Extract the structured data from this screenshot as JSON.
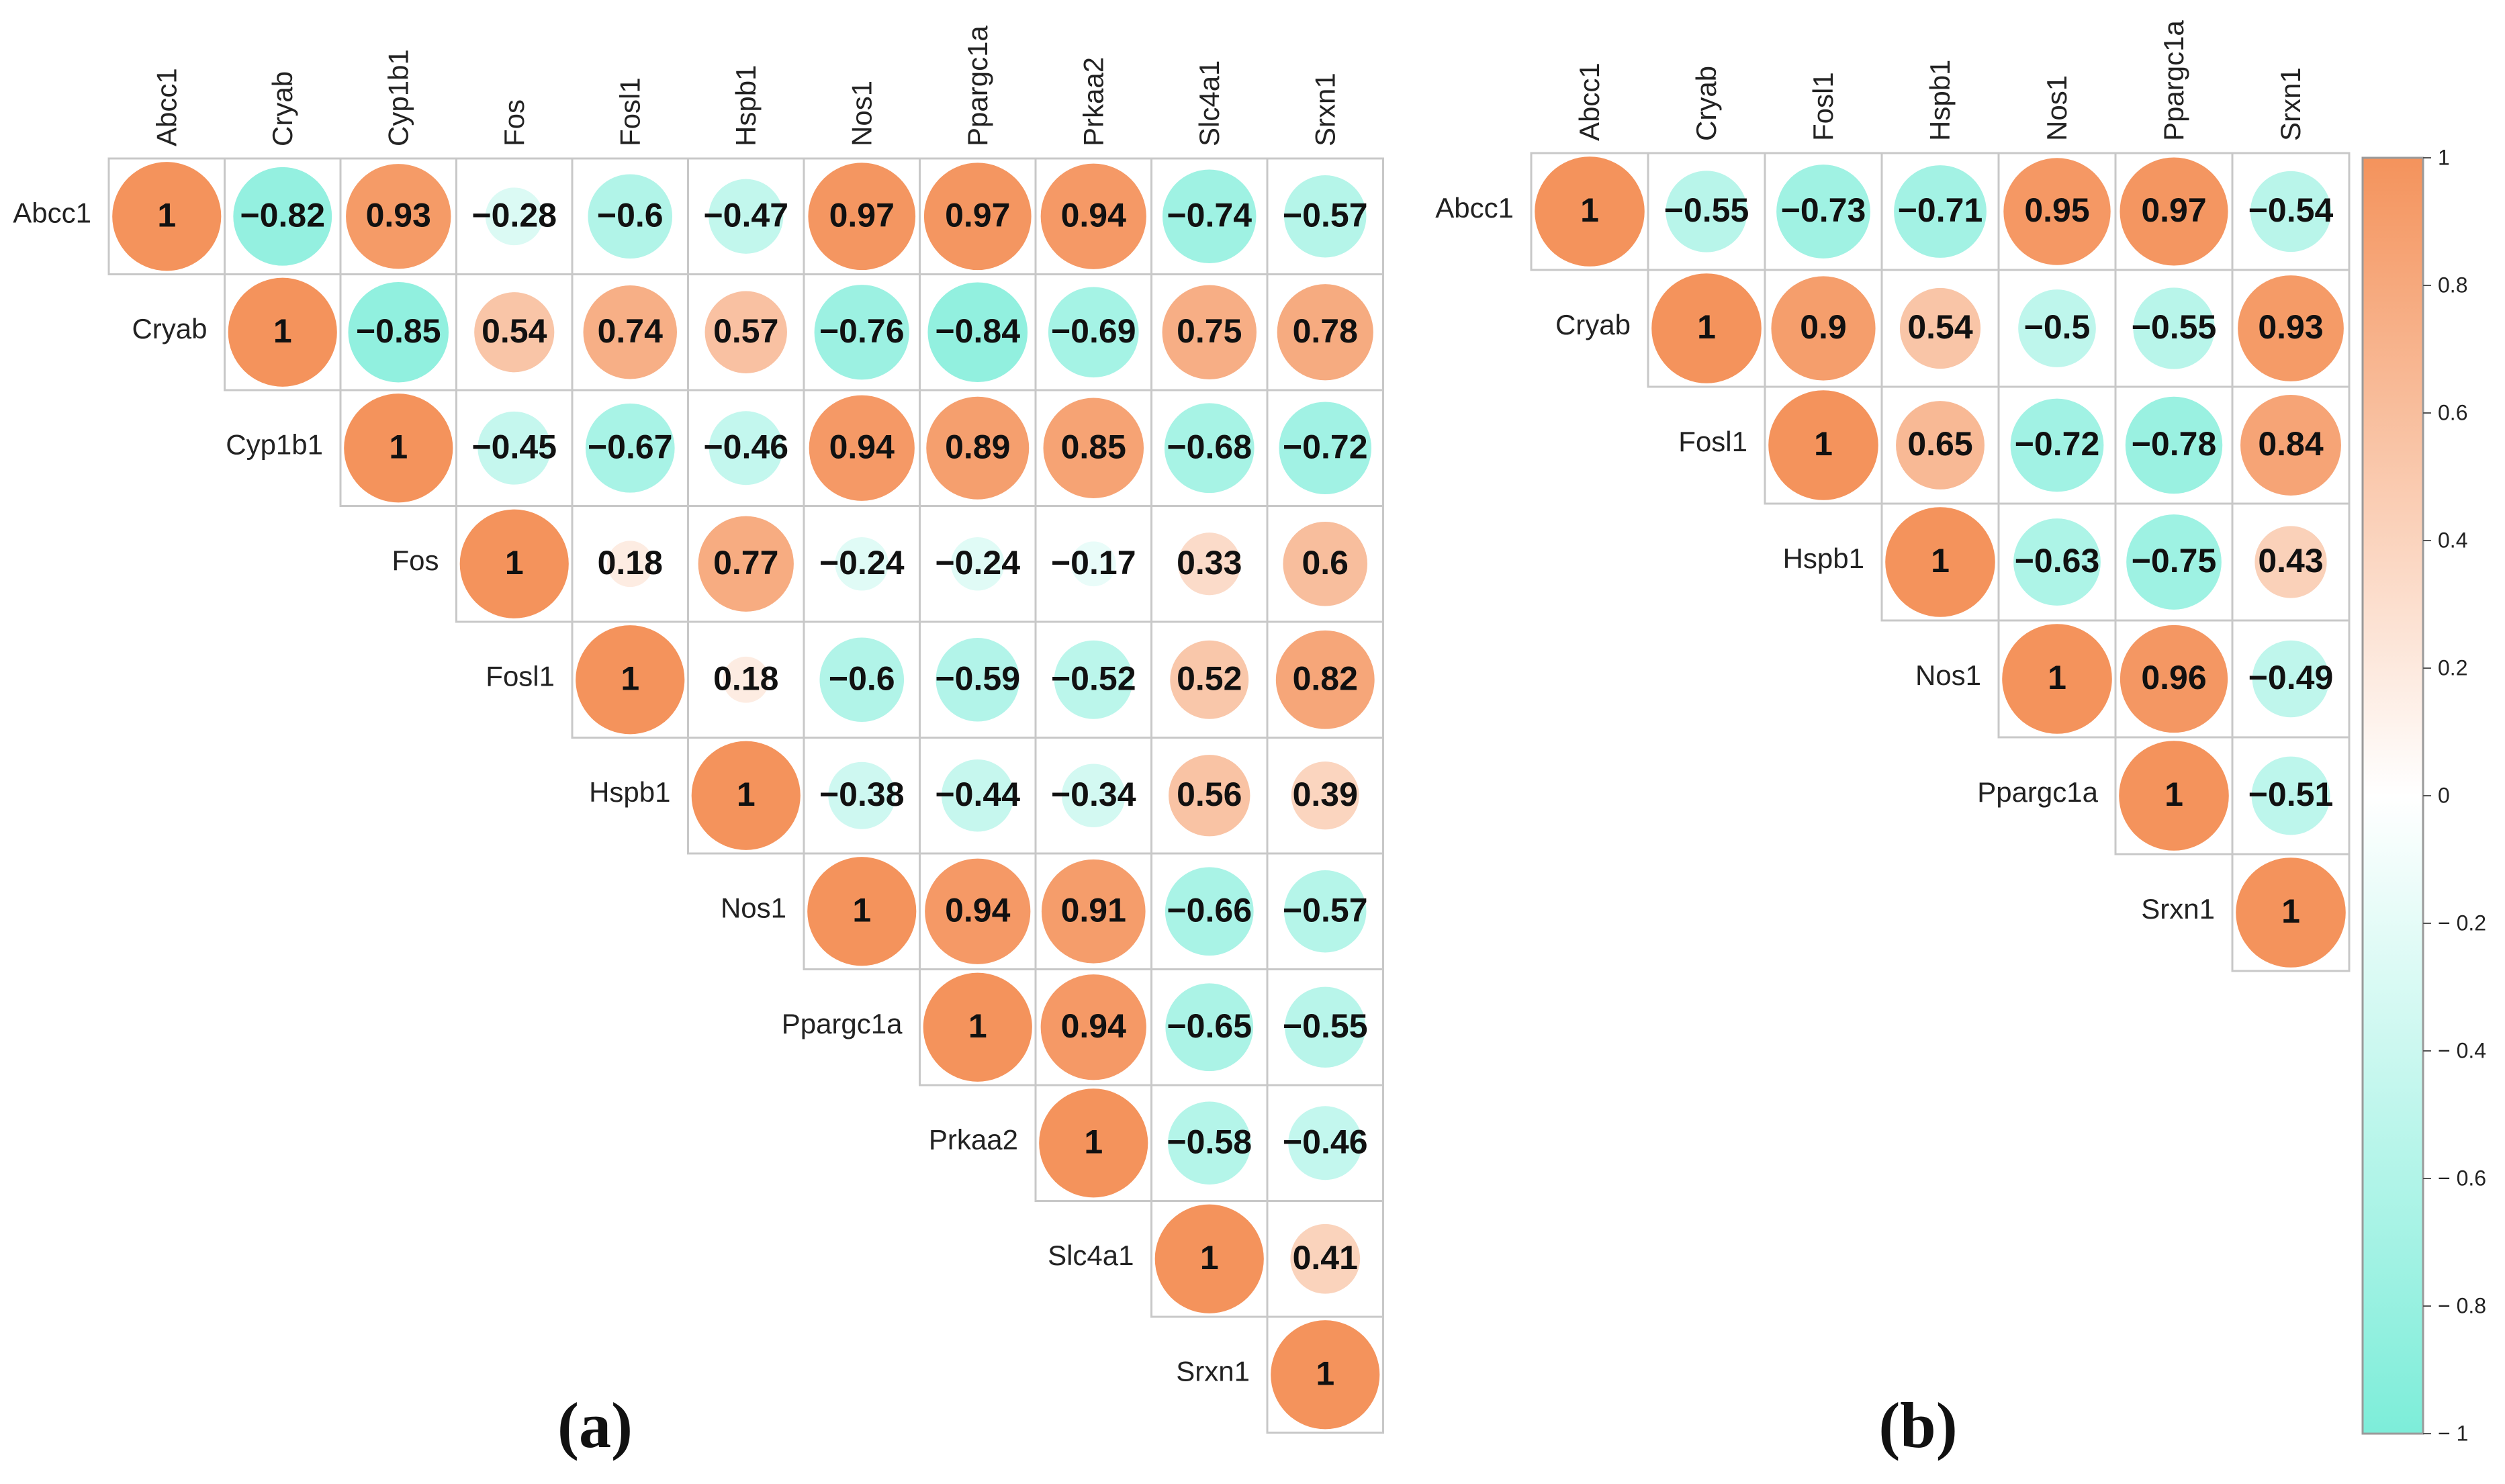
{
  "chart_data": [
    {
      "type": "heatmap",
      "variant": "correlation upper triangle with circles",
      "panel_label": "(a)",
      "genes": [
        "Abcc1",
        "Cryab",
        "Cyp1b1",
        "Fos",
        "Fosl1",
        "Hspb1",
        "Nos1",
        "Ppargc1a",
        "Prkaa2",
        "Slc4a1",
        "Srxn1"
      ],
      "matrix": [
        [
          1,
          -0.82,
          0.93,
          -0.28,
          -0.6,
          -0.47,
          0.97,
          0.97,
          0.94,
          -0.74,
          -0.57
        ],
        [
          -0.82,
          1,
          -0.85,
          0.54,
          0.74,
          0.57,
          -0.76,
          -0.84,
          -0.69,
          0.75,
          0.78
        ],
        [
          0.93,
          -0.85,
          1,
          -0.45,
          -0.67,
          -0.46,
          0.94,
          0.89,
          0.85,
          -0.68,
          -0.72
        ],
        [
          -0.28,
          0.54,
          -0.45,
          1,
          0.18,
          0.77,
          -0.24,
          -0.24,
          -0.17,
          0.33,
          0.6
        ],
        [
          -0.6,
          0.74,
          -0.67,
          0.18,
          1,
          0.18,
          -0.6,
          -0.59,
          -0.52,
          0.52,
          0.82
        ],
        [
          -0.47,
          0.57,
          -0.46,
          0.77,
          0.18,
          1,
          -0.38,
          -0.44,
          -0.34,
          0.56,
          0.39
        ],
        [
          0.97,
          -0.76,
          0.94,
          -0.24,
          -0.6,
          -0.38,
          1,
          0.94,
          0.91,
          -0.66,
          -0.57
        ],
        [
          0.97,
          -0.84,
          0.89,
          -0.24,
          -0.59,
          -0.44,
          0.94,
          1,
          0.94,
          -0.65,
          -0.55
        ],
        [
          0.94,
          -0.69,
          0.85,
          -0.17,
          -0.52,
          -0.34,
          0.91,
          0.94,
          1,
          -0.58,
          -0.46
        ],
        [
          -0.74,
          0.75,
          -0.68,
          0.33,
          0.52,
          0.56,
          -0.66,
          -0.65,
          -0.58,
          1,
          0.41
        ],
        [
          -0.57,
          0.78,
          -0.72,
          0.6,
          0.82,
          0.39,
          -0.57,
          -0.55,
          -0.46,
          0.41,
          1
        ]
      ],
      "value_range": [
        -1,
        1
      ]
    },
    {
      "type": "heatmap",
      "variant": "correlation upper triangle with circles",
      "panel_label": "(b)",
      "genes": [
        "Abcc1",
        "Cryab",
        "Fosl1",
        "Hspb1",
        "Nos1",
        "Ppargc1a",
        "Srxn1"
      ],
      "matrix": [
        [
          1,
          -0.55,
          -0.73,
          -0.71,
          0.95,
          0.97,
          -0.54
        ],
        [
          -0.55,
          1,
          0.9,
          0.54,
          -0.5,
          -0.55,
          0.93
        ],
        [
          -0.73,
          0.9,
          1,
          0.65,
          -0.72,
          -0.78,
          0.84
        ],
        [
          -0.71,
          0.54,
          0.65,
          1,
          -0.63,
          -0.75,
          0.43
        ],
        [
          0.95,
          -0.5,
          -0.72,
          -0.63,
          1,
          0.96,
          -0.49
        ],
        [
          0.97,
          -0.55,
          -0.78,
          -0.75,
          0.96,
          1,
          -0.51
        ],
        [
          -0.54,
          0.93,
          0.84,
          0.43,
          -0.49,
          -0.51,
          1
        ]
      ],
      "value_range": [
        -1,
        1
      ]
    }
  ],
  "colorbar": {
    "ticks": [
      "1",
      "0.8",
      "0.6",
      "0.4",
      "0.2",
      "0",
      "− 0.2",
      "− 0.4",
      "− 0.6",
      "− 0.8",
      "− 1"
    ],
    "colors": {
      "positive": "#f4935c",
      "neutral": "#ffffff",
      "negative": "#7dedd9"
    }
  },
  "colors": {
    "cell_border": "#c8c8c8",
    "text": "#111111"
  }
}
